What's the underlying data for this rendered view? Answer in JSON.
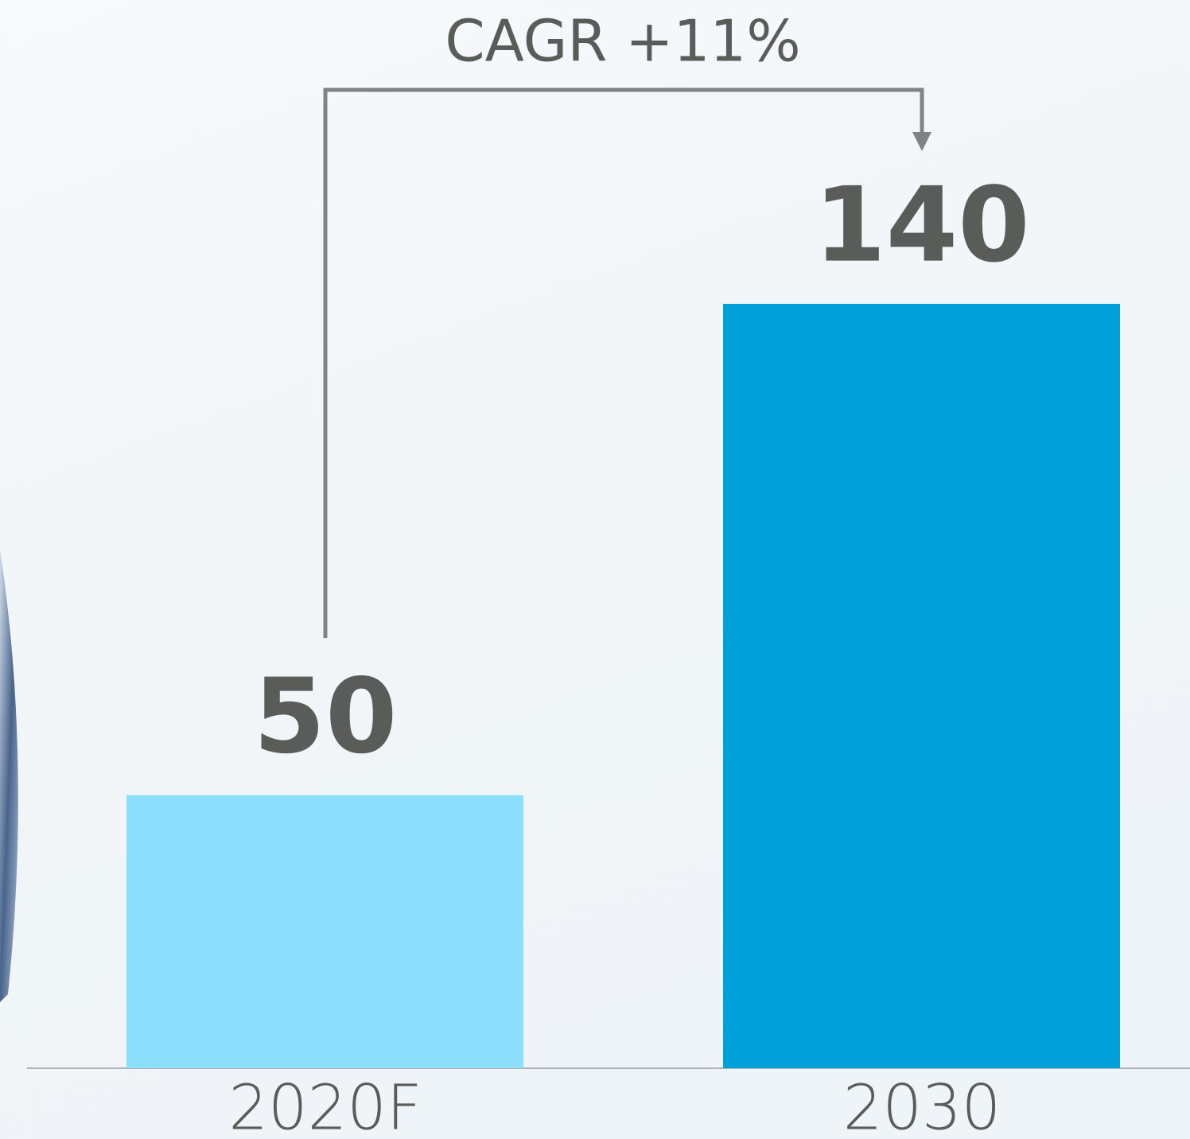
{
  "chart_data": {
    "type": "bar",
    "annotation": "CAGR +11%",
    "categories": [
      "2020F",
      "2030"
    ],
    "values": [
      50,
      140
    ],
    "colors": [
      "#8cdffc",
      "#00a0da"
    ]
  }
}
